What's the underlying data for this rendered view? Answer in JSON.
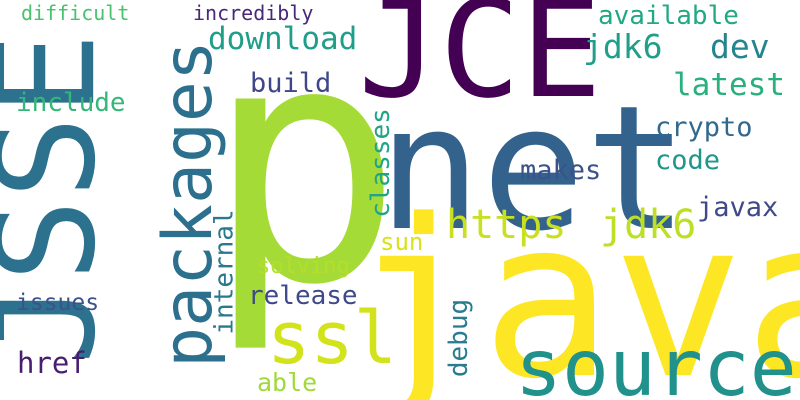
{
  "words": [
    {
      "text": "p",
      "color": "#a5db36",
      "rotated": false
    },
    {
      "text": "net",
      "color": "#33638d",
      "rotated": false
    },
    {
      "text": "java",
      "color": "#fde725",
      "rotated": false
    },
    {
      "text": "JSSE",
      "color": "#2c728e",
      "rotated": true
    },
    {
      "text": "JCE",
      "color": "#440154",
      "rotated": false
    },
    {
      "text": "packages",
      "color": "#2d708e",
      "rotated": true
    },
    {
      "text": "source",
      "color": "#21918c",
      "rotated": false
    },
    {
      "text": "ssl",
      "color": "#d2e21b",
      "rotated": false
    },
    {
      "text": "https",
      "color": "#c8e020",
      "rotated": false
    },
    {
      "text": "jdk6",
      "color": "#bddf26",
      "rotated": false
    },
    {
      "text": "jdk6",
      "color": "#1f9e89",
      "rotated": false
    },
    {
      "text": "dev",
      "color": "#25858e",
      "rotated": false
    },
    {
      "text": "available",
      "color": "#22a884",
      "rotated": false
    },
    {
      "text": "download",
      "color": "#1f9e89",
      "rotated": false
    },
    {
      "text": "latest",
      "color": "#2ab07f",
      "rotated": false
    },
    {
      "text": "crypto",
      "color": "#31688e",
      "rotated": false
    },
    {
      "text": "code",
      "color": "#1f968b",
      "rotated": false
    },
    {
      "text": "makes",
      "color": "#3b528b",
      "rotated": false
    },
    {
      "text": "javax",
      "color": "#3e4989",
      "rotated": false
    },
    {
      "text": "build",
      "color": "#3f4788",
      "rotated": false
    },
    {
      "text": "include",
      "color": "#35b779",
      "rotated": false
    },
    {
      "text": "classes",
      "color": "#20a486",
      "rotated": true
    },
    {
      "text": "internal",
      "color": "#2a788e",
      "rotated": true
    },
    {
      "text": "sun",
      "color": "#d8e219",
      "rotated": false
    },
    {
      "text": "solving",
      "color": "#b5de2b",
      "rotated": false
    },
    {
      "text": "release",
      "color": "#3e4a89",
      "rotated": false
    },
    {
      "text": "debug",
      "color": "#287c8e",
      "rotated": true
    },
    {
      "text": "issues",
      "color": "#3b528b",
      "rotated": false
    },
    {
      "text": "href",
      "color": "#481f70",
      "rotated": false
    },
    {
      "text": "able",
      "color": "#a0da39",
      "rotated": false
    },
    {
      "text": "difficult",
      "color": "#4ac16d",
      "rotated": false
    },
    {
      "text": "incredibly",
      "color": "#482878",
      "rotated": false
    }
  ]
}
